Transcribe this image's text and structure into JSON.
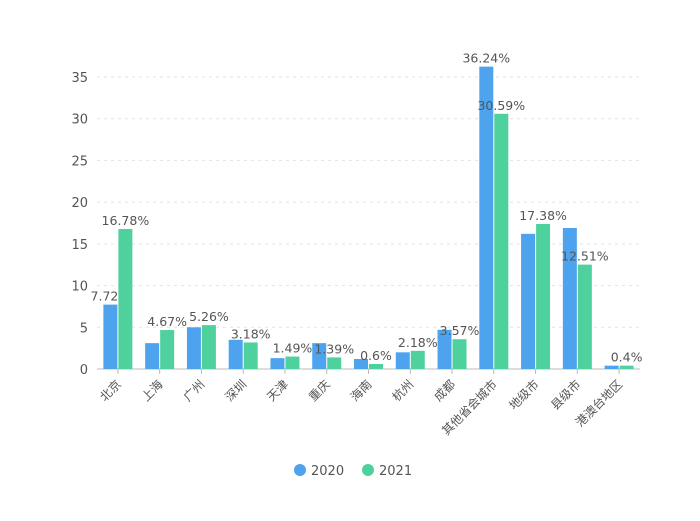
{
  "chart_data": {
    "type": "bar",
    "categories": [
      "北京",
      "上海",
      "广州",
      "深圳",
      "天津",
      "重庆",
      "海南",
      "杭州",
      "成都",
      "其他省会城市",
      "地级市",
      "县级市",
      "港澳台地区"
    ],
    "series": [
      {
        "name": "2020",
        "color": "#4da3ee",
        "values": [
          7.72,
          3.1,
          5.0,
          3.5,
          1.3,
          3.1,
          1.2,
          2.0,
          4.7,
          36.24,
          16.2,
          16.9,
          0.4
        ],
        "labels": [
          "7.72%",
          null,
          null,
          null,
          null,
          null,
          null,
          null,
          null,
          "36.24%",
          null,
          null,
          null
        ]
      },
      {
        "name": "2021",
        "color": "#4fd19e",
        "values": [
          16.78,
          4.67,
          5.26,
          3.18,
          1.49,
          1.39,
          0.6,
          2.18,
          3.57,
          30.59,
          17.38,
          12.51,
          0.4
        ],
        "labels": [
          "16.78%",
          "4.67%",
          "5.26%",
          "3.18%",
          "1.49%",
          "1.39%",
          "0.6%",
          "2.18%",
          "3.57%",
          "30.59%",
          "17.38%",
          "12.51%",
          "0.4%"
        ]
      }
    ],
    "yticks": [
      0,
      5,
      10,
      15,
      20,
      25,
      30,
      35
    ],
    "ylim": [
      0,
      37
    ],
    "grid": true,
    "legend": "bottom-center"
  }
}
